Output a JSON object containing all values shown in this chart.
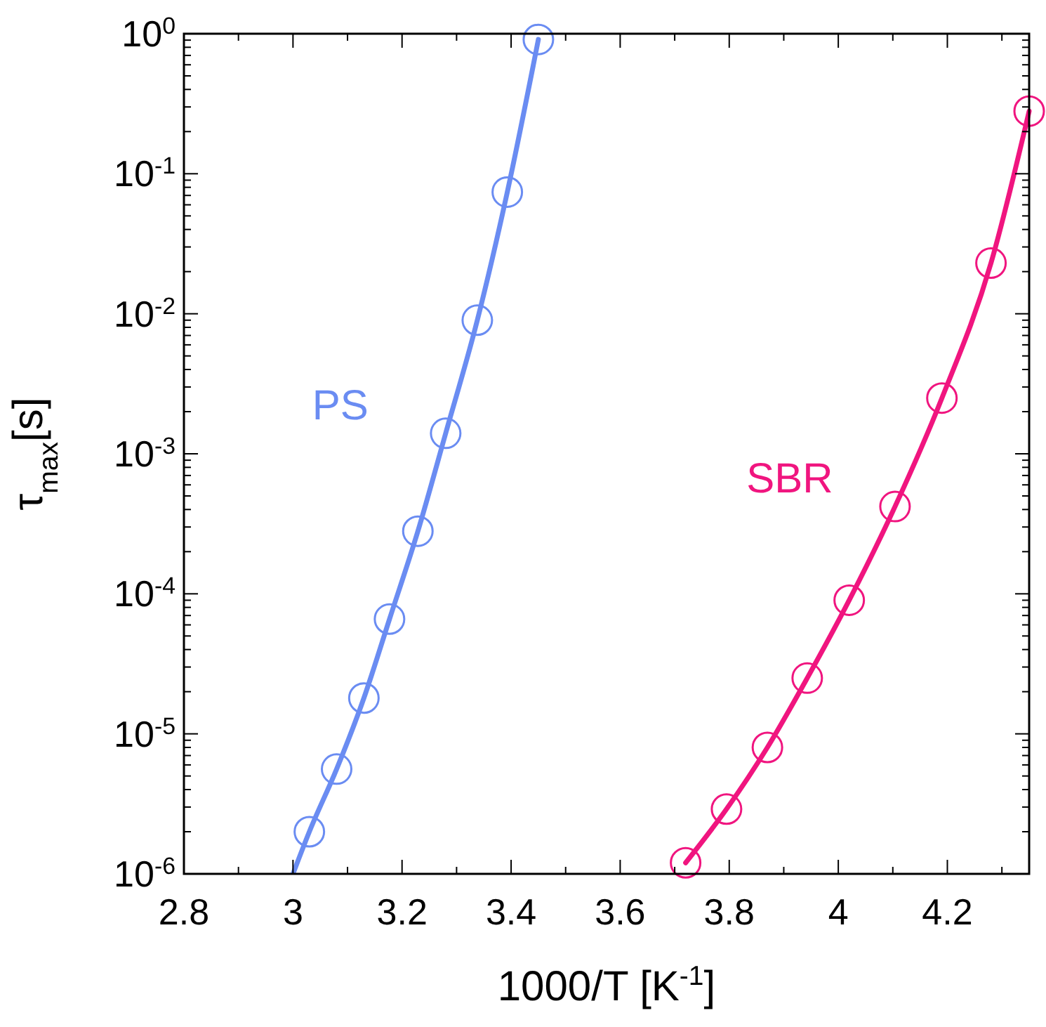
{
  "chart_data": {
    "type": "scatter",
    "log": "y",
    "marker": "circle",
    "xlabel": "1000/T [K$^{-1}$]",
    "ylabel": "τ$_{max}$[s]",
    "xlim": [
      2.8,
      4.35
    ],
    "xticks": [
      2.8,
      3,
      3.2,
      3.4,
      3.6,
      3.8,
      4,
      4.2
    ],
    "ylim": [
      1e-06,
      1
    ],
    "yticks": [
      {
        "value": 1e-06,
        "label": "10$^{-6}$"
      },
      {
        "value": 1e-05,
        "label": "10$^{-5}$"
      },
      {
        "value": 0.0001,
        "label": "10$^{-4}$"
      },
      {
        "value": 0.001,
        "label": "10$^{-3}$"
      },
      {
        "value": 0.01,
        "label": "10$^{-2}$"
      },
      {
        "value": 0.1,
        "label": "10$^{-1}$"
      },
      {
        "value": 1,
        "label": "10$^{0}$"
      }
    ],
    "series": [
      {
        "type": "line",
        "marker": "none",
        "color": "#6a8cf2",
        "x": [
          3.0,
          3.03,
          3.08,
          3.13,
          3.177,
          3.229,
          3.28,
          3.338,
          3.393,
          3.45
        ],
        "values": [
          1e-06,
          2e-06,
          5.6e-06,
          1.8e-05,
          6.6e-05,
          0.00028,
          0.0014,
          0.009,
          0.074,
          0.91
        ]
      },
      {
        "name": "PS",
        "color": "#6a8cf2",
        "x": [
          3.03,
          3.08,
          3.13,
          3.177,
          3.229,
          3.28,
          3.338,
          3.393,
          3.45
        ],
        "values": [
          2e-06,
          5.6e-06,
          1.8e-05,
          6.6e-05,
          0.00028,
          0.0014,
          0.009,
          0.074,
          0.91
        ]
      },
      {
        "type": "line",
        "marker": "none",
        "color": "#f0157f",
        "x": [
          3.72,
          3.795,
          3.87,
          3.943,
          4.02,
          4.104,
          4.19,
          4.28,
          4.35
        ],
        "values": [
          1.2e-06,
          2.9e-06,
          8e-06,
          2.5e-05,
          9e-05,
          0.00042,
          0.0025,
          0.023,
          0.28
        ]
      },
      {
        "name": "SBR",
        "color": "#f0157f",
        "x": [
          3.72,
          3.795,
          3.87,
          3.943,
          4.02,
          4.104,
          4.19,
          4.28,
          4.35
        ],
        "values": [
          1.2e-06,
          2.9e-06,
          8e-06,
          2.5e-05,
          9e-05,
          0.00042,
          0.0025,
          0.023,
          0.28
        ]
      }
    ]
  }
}
